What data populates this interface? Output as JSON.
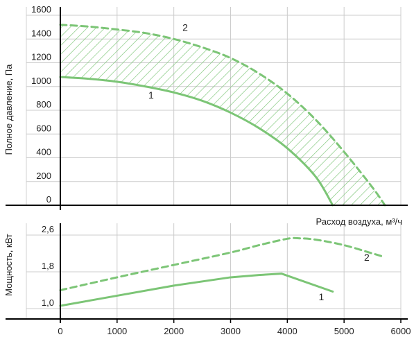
{
  "colors": {
    "curve": "#7cc576",
    "hatch": "#7cc576",
    "grid": "#cccccc",
    "axis": "#000000",
    "panel": "#d9d9d9"
  },
  "chart_data": [
    {
      "type": "line",
      "ylabel": "Полное давление, Па",
      "xlabel": "Расход воздуха, м³/ч",
      "xlim": [
        0,
        6000
      ],
      "ylim": [
        0,
        1600
      ],
      "y_ticks": [
        "0",
        "200",
        "400",
        "600",
        "800",
        "1000",
        "1200",
        "1400",
        "1600"
      ],
      "grid": true,
      "fill_between_series": true,
      "series": [
        {
          "name": "1",
          "style": "solid",
          "x": [
            0,
            500,
            1000,
            1500,
            2000,
            2500,
            3000,
            3500,
            4000,
            4500,
            4800
          ],
          "y": [
            1080,
            1065,
            1040,
            1000,
            950,
            880,
            780,
            650,
            480,
            240,
            0
          ]
        },
        {
          "name": "2",
          "style": "dashed",
          "x": [
            0,
            500,
            1000,
            1500,
            2000,
            2500,
            3000,
            3500,
            4000,
            4500,
            5000,
            5500,
            5720
          ],
          "y": [
            1520,
            1505,
            1480,
            1450,
            1400,
            1330,
            1240,
            1110,
            940,
            720,
            450,
            150,
            0
          ]
        }
      ]
    },
    {
      "type": "line",
      "ylabel": "Мощность, кВт",
      "xlabel": "",
      "xlim": [
        0,
        6000
      ],
      "ylim": [
        1.0,
        2.6
      ],
      "y_ticks": [
        "1,0",
        "1,8",
        "2,6"
      ],
      "x_ticks": [
        "0",
        "1000",
        "2000",
        "3000",
        "4000",
        "5000",
        "6000"
      ],
      "grid": true,
      "series": [
        {
          "name": "1",
          "style": "solid",
          "x": [
            0,
            1000,
            2000,
            3000,
            3500,
            3900,
            4800
          ],
          "y": [
            1.06,
            1.28,
            1.5,
            1.68,
            1.73,
            1.76,
            1.37
          ]
        },
        {
          "name": "2",
          "style": "dashed",
          "x": [
            0,
            1000,
            2000,
            3000,
            3500,
            4000,
            4200,
            4500,
            5000,
            5500,
            5720
          ],
          "y": [
            1.4,
            1.68,
            1.95,
            2.22,
            2.38,
            2.52,
            2.53,
            2.5,
            2.38,
            2.2,
            2.12
          ]
        }
      ]
    }
  ]
}
